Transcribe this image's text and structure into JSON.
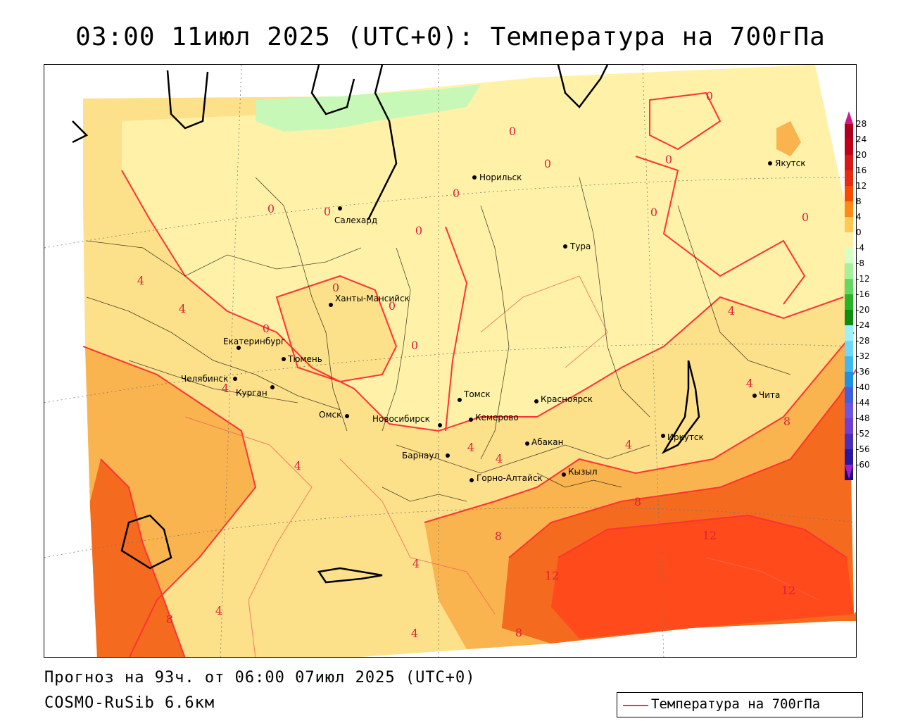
{
  "title": "03:00 11июл 2025 (UTC+0): Температура на 700гПа",
  "forecast_info": "Прогноз на 93ч. от 06:00 07июл 2025 (UTC+0)",
  "model": "COSMO-RuSib 6.6км",
  "legend": {
    "label": "Температура на 700гПа",
    "line_color": "#ff3333"
  },
  "colorbar": {
    "labels": [
      "28",
      "24",
      "20",
      "16",
      "12",
      "8",
      "4",
      "0",
      "-4",
      "-8",
      "-12",
      "-16",
      "-20",
      "-24",
      "-28",
      "-32",
      "-36",
      "-40",
      "-44",
      "-48",
      "-52",
      "-56",
      "-60"
    ],
    "colors": [
      "#b00020",
      "#c00018",
      "#d81818",
      "#e82a10",
      "#fa4a00",
      "#ff8a18",
      "#ffc857",
      "#fff2a8",
      "#d8ffc8",
      "#a8f0a0",
      "#64d864",
      "#28b428",
      "#108c10",
      "#9ef0ff",
      "#70d8f8",
      "#40b8f0",
      "#2090e0",
      "#4060e0",
      "#6a58e0",
      "#7040d0",
      "#4830b8",
      "#2818a0",
      "#1a0a80"
    ],
    "top_arrow_color": "#d0188a",
    "bottom_arrow_color": "#a020d0"
  },
  "cities": [
    {
      "name": "Норильск"
    },
    {
      "name": "Якутск"
    },
    {
      "name": "Салехард"
    },
    {
      "name": "Тура"
    },
    {
      "name": "Ханты-Мансийск"
    },
    {
      "name": "Екатеринбург"
    },
    {
      "name": "Тюмень"
    },
    {
      "name": "Челябинск"
    },
    {
      "name": "Курган"
    },
    {
      "name": "Омск"
    },
    {
      "name": "Новосибирск"
    },
    {
      "name": "Томск"
    },
    {
      "name": "Кемерово"
    },
    {
      "name": "Красноярск"
    },
    {
      "name": "Барнаул"
    },
    {
      "name": "Абакан"
    },
    {
      "name": "Горно-Алтайск"
    },
    {
      "name": "Кызыл"
    },
    {
      "name": "Иркутск"
    },
    {
      "name": "Чита"
    }
  ],
  "contour_labels": [
    "0",
    "0",
    "0",
    "0",
    "0",
    "0",
    "0",
    "0",
    "0",
    "0",
    "0",
    "0",
    "0",
    "0",
    "4",
    "4",
    "4",
    "4",
    "4",
    "4",
    "4",
    "4",
    "4",
    "4",
    "4",
    "4",
    "8",
    "8",
    "8",
    "8",
    "8",
    "12",
    "12",
    "12"
  ]
}
